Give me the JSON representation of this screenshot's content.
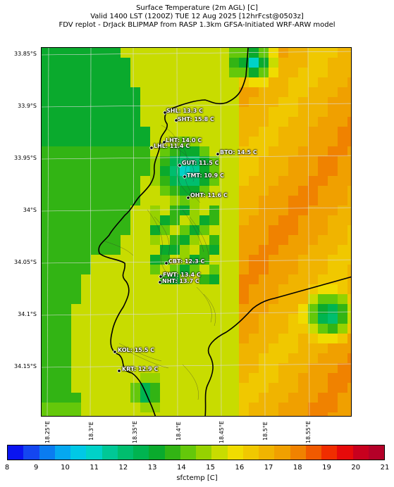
{
  "header": {
    "line1": "Surface Temperature (2m AGL) [C]",
    "line2": "Valid 1400 LST (1200Z) TUE 12 Aug 2025 [12hrFcst@0503z]",
    "line3": "FDV replot - DrJack BLIPMAP from RASP 1.3km GFSA-Initiated WRF-ARW model"
  },
  "axes": {
    "lat_labels": [
      "33.85°S",
      "33.9°S",
      "33.95°S",
      "34°S",
      "34.05°S",
      "34.1°S",
      "34.15°S"
    ],
    "lon_labels": [
      "18.25°E",
      "18.3°E",
      "18.35°E",
      "18.4°E",
      "18.45°E",
      "18.5°E",
      "18.55°E"
    ]
  },
  "stations": [
    {
      "label": "SHL: 13.3 C"
    },
    {
      "label": "SHT: 15.8 C"
    },
    {
      "label": "LHT: 14.0 C"
    },
    {
      "label": "LHL: 11.4 C"
    },
    {
      "label": "BTO: 14.5 C"
    },
    {
      "label": "GUT: 11.5 C"
    },
    {
      "label": "TMT: 10.9 C"
    },
    {
      "label": "OHT: 11.6 C"
    },
    {
      "label": "CBT: 12.3 C"
    },
    {
      "label": "FWT: 13.4 C"
    },
    {
      "label": "NHT: 13.7 C"
    },
    {
      "label": "KOL: 15.5 C"
    },
    {
      "label": "KRT: 12.9 C"
    }
  ],
  "colorbar": {
    "label": "sfctemp [C]",
    "ticks": [
      "8",
      "9",
      "10",
      "11",
      "12",
      "13",
      "14",
      "15",
      "16",
      "17",
      "18",
      "19",
      "20",
      "21"
    ],
    "colors": [
      "#0a14f0",
      "#1446f0",
      "#0a7cf0",
      "#05a8f0",
      "#00c8e6",
      "#00d2c8",
      "#00c896",
      "#00be6e",
      "#00b450",
      "#0aaa2d",
      "#32b414",
      "#64c80a",
      "#96d200",
      "#c8dc00",
      "#f0dc00",
      "#f0c800",
      "#f0b400",
      "#f0a000",
      "#f08200",
      "#f05a00",
      "#f02d00",
      "#e60a0a",
      "#c8001e",
      "#b40028"
    ]
  }
}
